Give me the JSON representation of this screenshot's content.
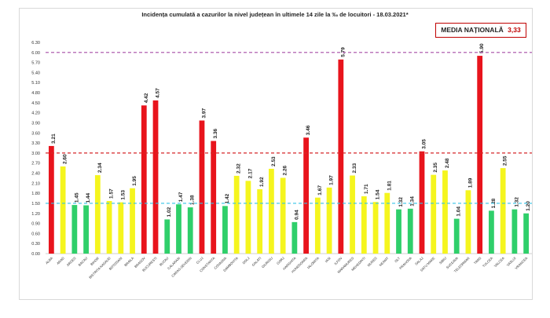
{
  "chart_data": {
    "type": "bar",
    "title": "Incidența cumulată a cazurilor la nivel județean în ultimele 14 zile la ‰ de locuitori - 18.03.2021*",
    "national_label": "MEDIA NAȚIONALĂ",
    "national_value": "3,33",
    "ylim": [
      0,
      6.3
    ],
    "yticks": [
      "0.00",
      "0.30",
      "0.60",
      "0.90",
      "1.20",
      "1.50",
      "1.80",
      "2.10",
      "2.40",
      "2.70",
      "3.00",
      "3.30",
      "3.60",
      "3.90",
      "4.20",
      "4.50",
      "4.80",
      "5.10",
      "5.40",
      "5.70",
      "6.00",
      "6.30"
    ],
    "reference_lines": [
      {
        "value": 6.0,
        "color": "#a64ca6",
        "style": "dashed"
      },
      {
        "value": 3.0,
        "color": "#d62728",
        "style": "dashed"
      },
      {
        "value": 1.5,
        "color": "#33c3e8",
        "style": "dashed"
      }
    ],
    "grid": false,
    "categories": [
      "ALBA",
      "ARAD",
      "ARGES",
      "BACAU",
      "BIHOR",
      "BISTRITA NASAUD",
      "BOTOSANI",
      "BRAILA",
      "BRASOV",
      "BUCURESTI",
      "BUZAU",
      "CALARASI",
      "CARAS-SEVERIN",
      "CLUJ",
      "CONSTANTA",
      "COVASNA",
      "DAMBOVITA",
      "DOLJ",
      "GALATI",
      "GIURGIU",
      "GORJ",
      "HARGHITA",
      "HUNEDOARA",
      "IALOMITA",
      "IASI",
      "ILFOV",
      "MARAMURES",
      "MEHEDINTI",
      "MURES",
      "NEAMT",
      "OLT",
      "PRAHOVA",
      "SALAJ",
      "SATU MARE",
      "SIBIU",
      "SUCEAVA",
      "TELEORMAN",
      "TIMIS",
      "TULCEA",
      "VALCEA",
      "VASLUI",
      "VRANCEA"
    ],
    "values": [
      3.21,
      2.6,
      1.45,
      1.44,
      2.34,
      1.57,
      1.53,
      1.95,
      4.42,
      4.57,
      1.02,
      1.47,
      1.38,
      3.97,
      3.36,
      1.42,
      2.32,
      2.17,
      1.92,
      2.53,
      2.26,
      0.94,
      3.46,
      1.67,
      1.97,
      5.79,
      2.33,
      1.71,
      1.54,
      1.81,
      1.32,
      1.34,
      3.05,
      2.35,
      2.48,
      1.04,
      1.89,
      5.9,
      1.28,
      2.55,
      1.32,
      1.2
    ],
    "labels": [
      "3.21",
      "2.60",
      "1.45",
      "1.44",
      "2.34",
      "1.57",
      "1.53",
      "1.95",
      "4.42",
      "4.57",
      "1.02",
      "1.47",
      "1.38",
      "3.97",
      "3.36",
      "1.42",
      "2.32",
      "2.17",
      "1.92",
      "2.53",
      "2.26",
      "0.94",
      "3.46",
      "1.67",
      "1.97",
      "5.79",
      "2.33",
      "1.71",
      "1.54",
      "1.81",
      "1.32",
      "1.34",
      "3.05",
      "2.35",
      "2.48",
      "1.04",
      "1.89",
      "5.90",
      "1.28",
      "2.55",
      "1.32",
      "1.20"
    ],
    "colors": {
      "red": "#e8141c",
      "yellow": "#f5f51e",
      "green": "#2fcf6a"
    },
    "thresholds": {
      "green_below": 1.5,
      "red_from": 3.0
    }
  }
}
